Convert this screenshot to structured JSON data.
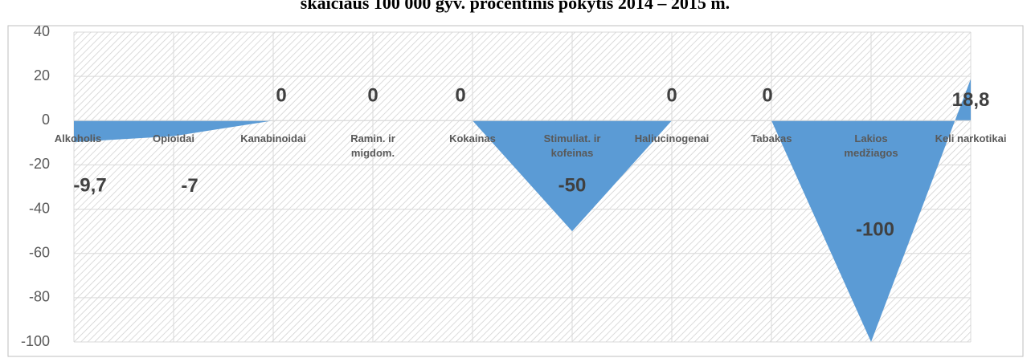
{
  "chart_data": {
    "type": "area",
    "title": "skaičiaus 100 000 gyv. procentinis pokytis 2014 – 2015 m.",
    "categories": [
      "Alkoholis",
      "Opioidai",
      "Kanabinoidai",
      "Ramin. ir migdom.",
      "Kokainas",
      "Stimuliat. ir kofeinas",
      "Haliucinogenai",
      "Tabakas",
      "Lakios medžiagos",
      "Keli  narkotikai"
    ],
    "values": [
      -9.7,
      -7,
      0,
      0,
      0,
      -50,
      0,
      0,
      -100,
      18.8
    ],
    "value_labels": [
      "-9,7",
      "-7",
      "0",
      "0",
      "0",
      "-50",
      "0",
      "0",
      "-100",
      "18,8"
    ],
    "color": "#5b9bd5",
    "ylim": [
      -100,
      40
    ],
    "yticks": [
      -100,
      -80,
      -60,
      -40,
      -20,
      0,
      20,
      40
    ],
    "grid": true
  }
}
